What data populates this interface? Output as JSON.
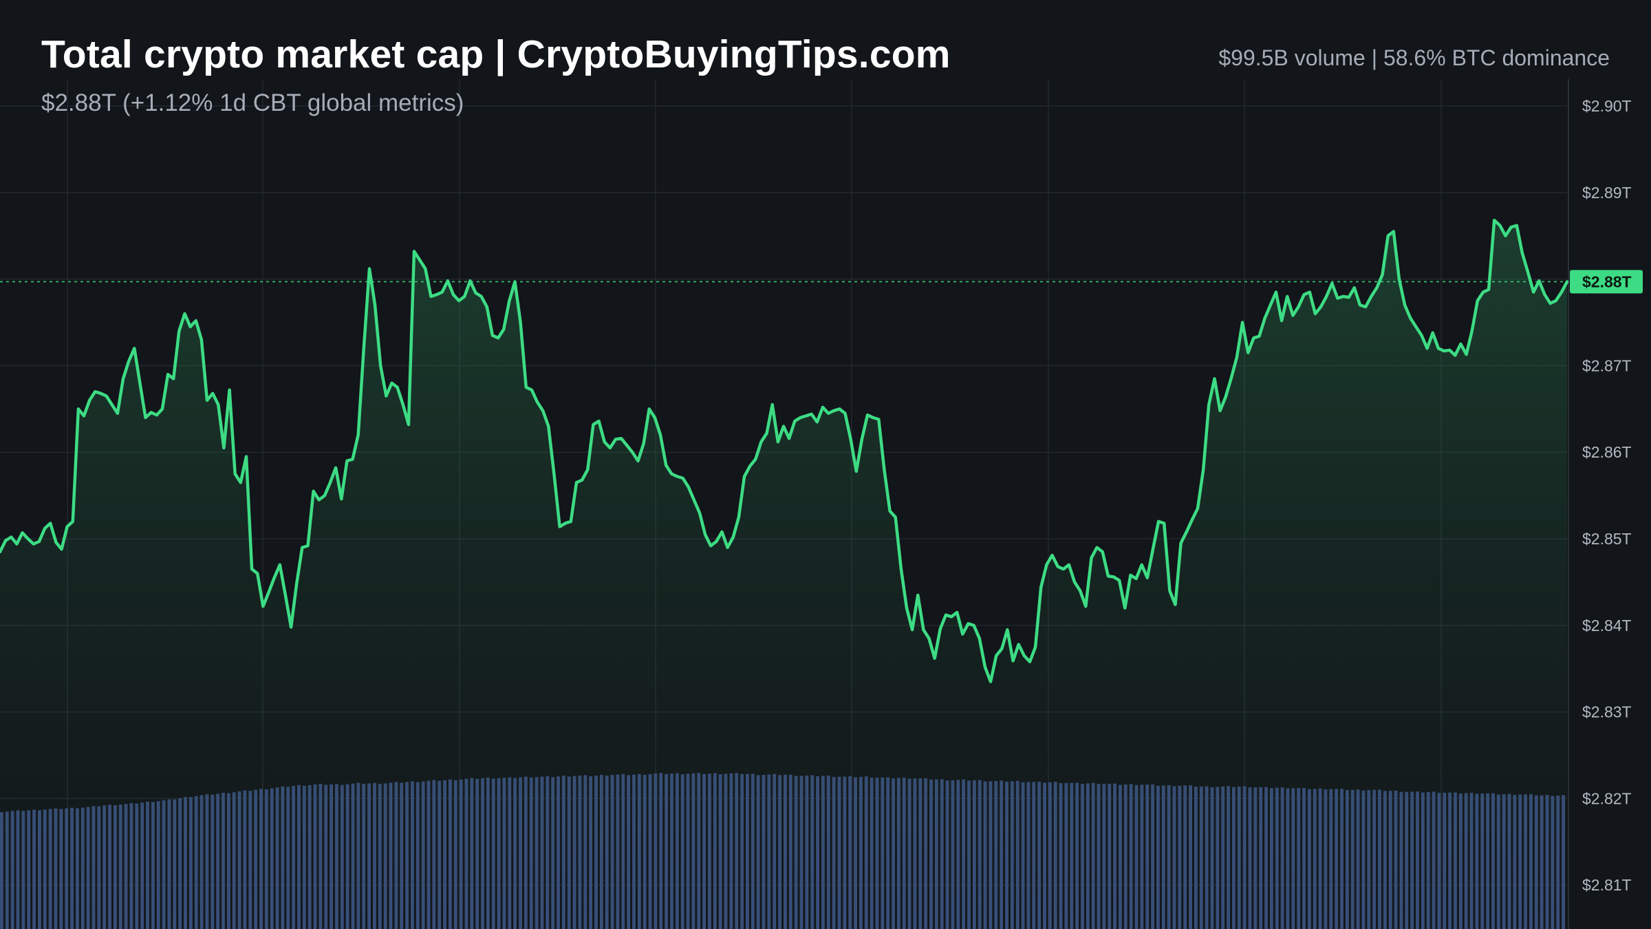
{
  "header": {
    "title": "Total crypto market cap | CryptoBuyingTips.com",
    "subtitle": "$2.88T (+1.12% 1d CBT global metrics)",
    "meta": "$99.5B volume | 58.6% BTC dominance"
  },
  "colors": {
    "background": "#121519",
    "line": "#3ddc84",
    "volume": "#3a4f7e",
    "grid": "#232830"
  },
  "chart_data": {
    "type": "line",
    "title": "Total crypto market cap | CryptoBuyingTips.com",
    "y_unit": "trillion USD",
    "ylim": [
      2.805,
      2.905
    ],
    "y_ticks": [
      2.9,
      2.89,
      2.88,
      2.87,
      2.86,
      2.85,
      2.84,
      2.83,
      2.82,
      2.81
    ],
    "y_tick_labels": [
      "$2.90T",
      "$2.89T",
      "$2.88T",
      "$2.87T",
      "$2.86T",
      "$2.85T",
      "$2.84T",
      "$2.83T",
      "$2.82T",
      "$2.81T"
    ],
    "grid": true,
    "current_value": 2.8797,
    "current_label": "$2.88T",
    "y_axis_position": "right",
    "values": [
      2.8485,
      2.8498,
      2.8502,
      2.8494,
      2.8507,
      2.85,
      2.8494,
      2.8497,
      2.8512,
      2.8518,
      2.8496,
      2.8488,
      2.8514,
      2.852,
      2.865,
      2.8642,
      2.866,
      2.867,
      2.8668,
      2.8665,
      2.8655,
      2.8645,
      2.8685,
      2.8705,
      2.872,
      2.868,
      2.864,
      2.8646,
      2.8643,
      2.865,
      2.869,
      2.8685,
      2.874,
      2.876,
      2.8745,
      2.8752,
      2.873,
      2.866,
      2.8668,
      2.8655,
      2.8605,
      2.8672,
      2.8575,
      2.8565,
      2.8595,
      2.8465,
      2.846,
      2.8422,
      2.8438,
      2.8455,
      2.847,
      2.8435,
      2.8398,
      2.8448,
      2.849,
      2.8492,
      2.8555,
      2.8545,
      2.855,
      2.8565,
      2.8582,
      2.8546,
      2.859,
      2.8592,
      2.862,
      2.872,
      2.8812,
      2.877,
      2.87,
      2.8665,
      2.868,
      2.8675,
      2.8655,
      2.8632,
      2.8832,
      2.8822,
      2.8812,
      2.878,
      2.8782,
      2.8785,
      2.8798,
      2.8782,
      2.8775,
      2.878,
      2.8798,
      2.8784,
      2.878,
      2.8768,
      2.8735,
      2.8732,
      2.8742,
      2.8775,
      2.8797,
      2.875,
      2.8675,
      2.8672,
      2.8658,
      2.8648,
      2.863,
      2.8575,
      2.8514,
      2.8518,
      2.852,
      2.8565,
      2.8568,
      2.858,
      2.8632,
      2.8636,
      2.8612,
      2.8605,
      2.8615,
      2.8616,
      2.8608,
      2.86,
      2.859,
      2.861,
      2.865,
      2.864,
      2.862,
      2.8585,
      2.8575,
      2.8572,
      2.857,
      2.856,
      2.8545,
      2.853,
      2.8505,
      2.8492,
      2.8497,
      2.8508,
      2.849,
      2.8502,
      2.8525,
      2.8572,
      2.8584,
      2.8592,
      2.8612,
      2.8622,
      2.8655,
      2.8612,
      2.863,
      2.8616,
      2.8636,
      2.864,
      2.8642,
      2.8644,
      2.8635,
      2.8652,
      2.8645,
      2.8648,
      2.865,
      2.8645,
      2.8615,
      2.8578,
      2.8615,
      2.8643,
      2.864,
      2.8638,
      2.858,
      2.8532,
      2.8525,
      2.8465,
      2.842,
      2.8395,
      2.8435,
      2.8395,
      2.8385,
      2.8362,
      2.8396,
      2.8412,
      2.841,
      2.8415,
      2.839,
      2.8402,
      2.84,
      2.8385,
      2.8352,
      2.8335,
      2.8365,
      2.8373,
      2.8395,
      2.8359,
      2.8378,
      2.8365,
      2.8358,
      2.8375,
      2.8444,
      2.847,
      2.8481,
      2.8468,
      2.8465,
      2.847,
      2.845,
      2.844,
      2.8422,
      2.8478,
      2.849,
      2.8485,
      2.8457,
      2.8456,
      2.8452,
      2.842,
      2.8458,
      2.8454,
      2.847,
      2.8455,
      2.8488,
      2.852,
      2.8518,
      2.844,
      2.8424,
      2.8495,
      2.8508,
      2.8522,
      2.8535,
      2.858,
      2.8655,
      2.8685,
      2.8648,
      2.8664,
      2.8686,
      2.871,
      2.875,
      2.8715,
      2.8732,
      2.8734,
      2.8755,
      2.877,
      2.8785,
      2.8752,
      2.878,
      2.8758,
      2.8768,
      2.8782,
      2.8785,
      2.876,
      2.8768,
      2.878,
      2.8795,
      2.8778,
      2.878,
      2.8779,
      2.879,
      2.877,
      2.8768,
      2.878,
      2.879,
      2.8805,
      2.885,
      2.8855,
      2.88,
      2.877,
      2.8755,
      2.8745,
      2.8735,
      2.872,
      2.8738,
      2.872,
      2.8717,
      2.8718,
      2.8712,
      2.8725,
      2.8713,
      2.874,
      2.8775,
      2.8785,
      2.8788,
      2.8868,
      2.8862,
      2.885,
      2.886,
      2.8862,
      2.883,
      2.8808,
      2.8785,
      2.8798,
      2.8782,
      2.8772,
      2.8775,
      2.8785,
      2.8797
    ],
    "volume_values": [
      0.65,
      0.66,
      0.67,
      0.68,
      0.69,
      0.71,
      0.72,
      0.74,
      0.76,
      0.79,
      0.81,
      0.83,
      0.85,
      0.87,
      0.89,
      0.9,
      0.9,
      0.91,
      0.91,
      0.92,
      0.93,
      0.94,
      0.95,
      0.96,
      0.96,
      0.97,
      0.97,
      0.98,
      0.98,
      0.99,
      0.99,
      1.0,
      1.0,
      1.0,
      1.0,
      1.0,
      0.99,
      0.99,
      0.98,
      0.98,
      0.97,
      0.97,
      0.96,
      0.96,
      0.95,
      0.94,
      0.94,
      0.93,
      0.93,
      0.92,
      0.92,
      0.91,
      0.91,
      0.9,
      0.9,
      0.89,
      0.89,
      0.88,
      0.88,
      0.88,
      0.87,
      0.87,
      0.86,
      0.86,
      0.85,
      0.85,
      0.84,
      0.83,
      0.83,
      0.82,
      0.82,
      0.81,
      0.81,
      0.8,
      0.8
    ]
  }
}
